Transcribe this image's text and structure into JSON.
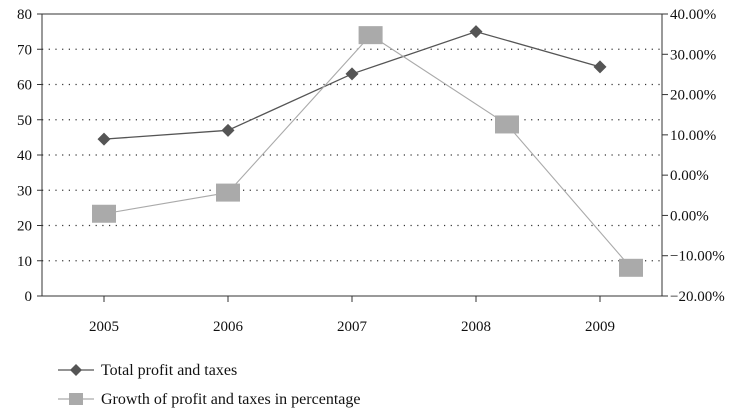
{
  "chart_data": {
    "type": "line",
    "categories": [
      "2005",
      "2006",
      "2007",
      "2008",
      "2009"
    ],
    "series": [
      {
        "name": "Total profit and taxes",
        "axis": "left",
        "marker": "diamond",
        "color": "#555555",
        "x": [
          2005,
          2006,
          2007,
          2008,
          2009
        ],
        "values": [
          44.5,
          47.0,
          63.0,
          75.0,
          65.0
        ]
      },
      {
        "name": "Growth of profit and taxes in percentage",
        "axis": "right",
        "marker": "square",
        "color": "#aaaaaa",
        "x": [
          2005.0,
          2006.0,
          2007.15,
          2008.25,
          2009.25
        ],
        "values": [
          -2.5,
          2.0,
          35.5,
          16.5,
          -14.0
        ]
      }
    ],
    "left_axis": {
      "ylim": [
        0,
        80
      ],
      "ticks": [
        {
          "value": 0,
          "label": "0"
        },
        {
          "value": 10,
          "label": "10"
        },
        {
          "value": 20,
          "label": "20"
        },
        {
          "value": 30,
          "label": "30"
        },
        {
          "value": 40,
          "label": "40"
        },
        {
          "value": 50,
          "label": "50"
        },
        {
          "value": 60,
          "label": "60"
        },
        {
          "value": 70,
          "label": "70"
        },
        {
          "value": 80,
          "label": "80"
        }
      ]
    },
    "right_axis": {
      "note": "printed labels as shown (the original repeats 0.00%)",
      "ticks": [
        {
          "label": "40.00%"
        },
        {
          "label": "30.00%"
        },
        {
          "label": "20.00%"
        },
        {
          "label": "10.00%"
        },
        {
          "label": "0.00%"
        },
        {
          "label": "0.00%"
        },
        {
          "label": "−10.00%"
        },
        {
          "label": "−20.00%"
        }
      ],
      "ylim": [
        -20,
        40
      ]
    },
    "x_axis": {
      "xlim": [
        2004.5,
        2009.5
      ],
      "ticks": [
        {
          "value": 2005,
          "label": "2005"
        },
        {
          "value": 2006,
          "label": "2006"
        },
        {
          "value": 2007,
          "label": "2007"
        },
        {
          "value": 2008,
          "label": "2008"
        },
        {
          "value": 2009,
          "label": "2009"
        }
      ]
    },
    "grid": "dotted horizontal",
    "legend_position": "bottom-left",
    "title": "",
    "xlabel": "",
    "ylabel": ""
  }
}
